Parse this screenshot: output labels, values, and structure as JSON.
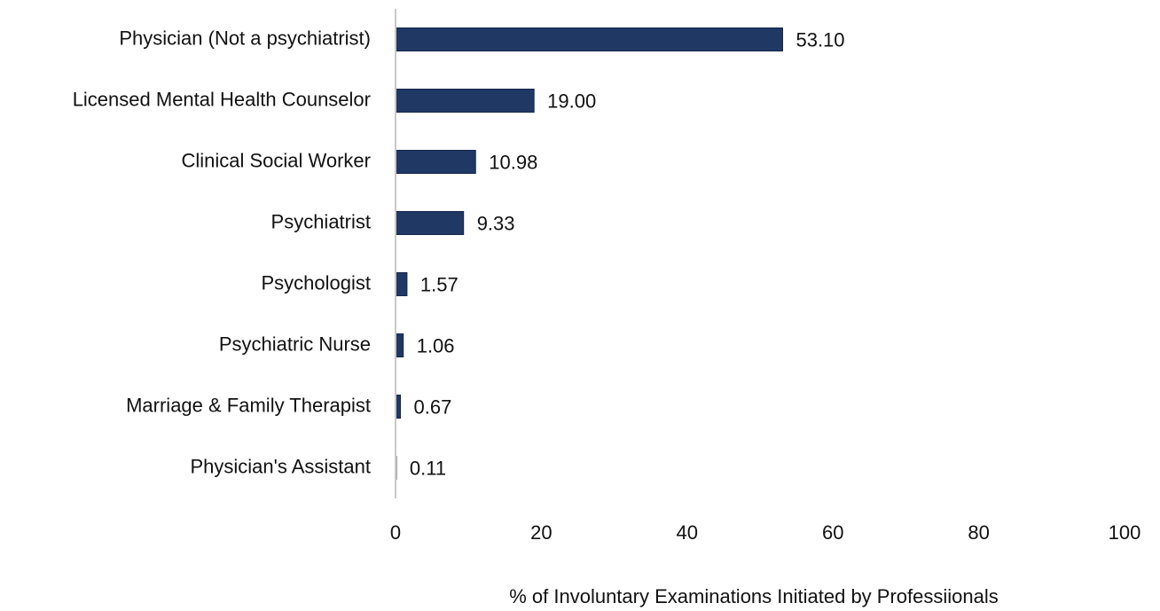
{
  "chart_data": {
    "type": "bar",
    "orientation": "horizontal",
    "x_label": "% of Involuntary Examinations Initiated by Professiionals",
    "categories": [
      "Physician (Not a psychiatrist)",
      "Licensed Mental Health Counselor",
      "Clinical Social Worker",
      "Psychiatrist",
      "Psychologist",
      "Psychiatric Nurse",
      "Marriage & Family Therapist",
      "Physician's Assistant"
    ],
    "values": [
      53.1,
      19,
      10.98,
      9.33,
      1.57,
      1.06,
      0.67,
      0.11
    ],
    "value_labels": [
      "53.10",
      "19.00",
      "10.98",
      "9.33",
      "1.57",
      "1.06",
      "0.67",
      "0.11"
    ],
    "color": "#1f3864",
    "xlim": [
      0,
      100
    ],
    "xticks": [
      0,
      20,
      40,
      60,
      80,
      100
    ],
    "grid": false
  }
}
